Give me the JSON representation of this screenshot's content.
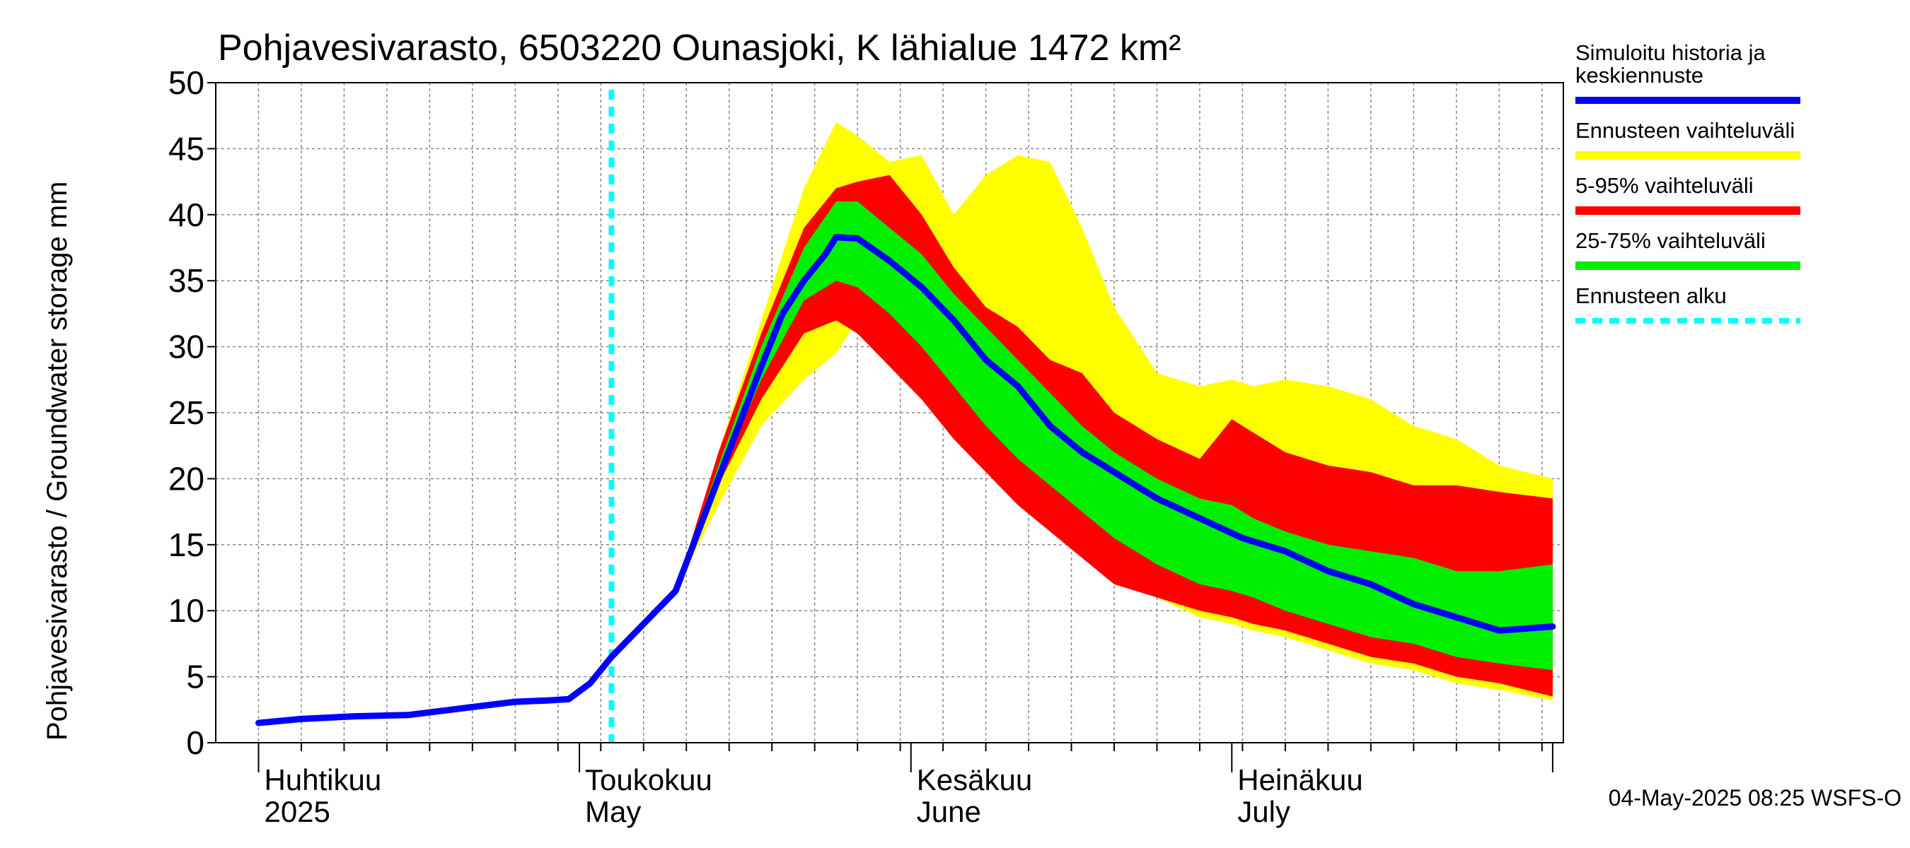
{
  "chart_data": {
    "type": "area",
    "title": "Pohjavesivarasto, 6503220 Ounasjoki, K lähialue 1472 km²",
    "ylabel": "Pohjavesivarasto / Groundwater storage   mm",
    "ylim": [
      0,
      50
    ],
    "yticks": [
      0,
      5,
      10,
      15,
      20,
      25,
      30,
      35,
      40,
      45,
      50
    ],
    "xlim": [
      "2025-04-01",
      "2025-07-31"
    ],
    "month_labels": [
      {
        "date": "2025-04-01",
        "line1": "Huhtikuu",
        "line2": "2025"
      },
      {
        "date": "2025-05-01",
        "line1": "Toukokuu",
        "line2": "May"
      },
      {
        "date": "2025-06-01",
        "line1": "Kesäkuu",
        "line2": "June"
      },
      {
        "date": "2025-07-01",
        "line1": "Heinäkuu",
        "line2": "July"
      }
    ],
    "forecast_start": "2025-05-04",
    "footer": "04-May-2025 08:25 WSFS-O",
    "legend": [
      {
        "label": "Simuloitu historia ja keskiennuste",
        "line1": "Simuloitu historia ja",
        "line2": "keskiennuste",
        "color": "#0000ff",
        "style": "solid"
      },
      {
        "label": "Ennusteen vaihteluväli",
        "color": "#ffff00",
        "style": "band"
      },
      {
        "label": "5-95% vaihteluväli",
        "color": "#ff0000",
        "style": "band"
      },
      {
        "label": "25-75% vaihteluväli",
        "color": "#00ee00",
        "style": "band"
      },
      {
        "label": "Ennusteen alku",
        "color": "#00ffff",
        "style": "dashed"
      }
    ],
    "history": {
      "x": [
        "2025-04-01",
        "2025-04-05",
        "2025-04-10",
        "2025-04-15",
        "2025-04-20",
        "2025-04-25",
        "2025-04-28",
        "2025-04-30",
        "2025-05-02",
        "2025-05-04"
      ],
      "y": [
        1.5,
        1.8,
        2.0,
        2.1,
        2.6,
        3.1,
        3.2,
        3.3,
        4.5,
        6.5
      ]
    },
    "median": {
      "x": [
        "2025-05-04",
        "2025-05-07",
        "2025-05-10",
        "2025-05-14",
        "2025-05-18",
        "2025-05-20",
        "2025-05-22",
        "2025-05-24",
        "2025-05-25",
        "2025-05-27",
        "2025-05-30",
        "2025-06-02",
        "2025-06-05",
        "2025-06-08",
        "2025-06-11",
        "2025-06-14",
        "2025-06-17",
        "2025-06-20",
        "2025-06-24",
        "2025-06-28",
        "2025-07-02",
        "2025-07-06",
        "2025-07-10",
        "2025-07-14",
        "2025-07-18",
        "2025-07-22",
        "2025-07-26",
        "2025-07-31"
      ],
      "y": [
        6.5,
        9.0,
        11.5,
        20.0,
        28.5,
        32.5,
        35.0,
        37.0,
        38.3,
        38.2,
        36.5,
        34.5,
        32.0,
        29.0,
        27.0,
        24.0,
        22.0,
        20.5,
        18.5,
        17.0,
        15.5,
        14.5,
        13.0,
        12.0,
        10.5,
        9.5,
        8.5,
        8.8
      ]
    },
    "band_x": [
      "2025-05-04",
      "2025-05-07",
      "2025-05-10",
      "2025-05-14",
      "2025-05-18",
      "2025-05-22",
      "2025-05-25",
      "2025-05-27",
      "2025-05-30",
      "2025-06-02",
      "2025-06-05",
      "2025-06-08",
      "2025-06-11",
      "2025-06-14",
      "2025-06-17",
      "2025-06-20",
      "2025-06-24",
      "2025-06-28",
      "2025-07-01",
      "2025-07-03",
      "2025-07-06",
      "2025-07-10",
      "2025-07-14",
      "2025-07-18",
      "2025-07-22",
      "2025-07-26",
      "2025-07-31"
    ],
    "bands": {
      "full": {
        "lower": [
          6.5,
          9.0,
          11.5,
          18.0,
          24.0,
          27.5,
          29.5,
          32.0,
          29.5,
          27.0,
          24.0,
          21.5,
          19.0,
          17.0,
          15.0,
          13.0,
          11.0,
          9.5,
          9.0,
          8.5,
          8.0,
          7.0,
          6.0,
          5.5,
          4.5,
          4.0,
          3.2
        ],
        "upper": [
          6.5,
          9.0,
          11.5,
          22.0,
          32.0,
          42.0,
          47.0,
          46.0,
          44.0,
          44.5,
          40.0,
          43.0,
          44.5,
          44.0,
          39.0,
          33.0,
          28.0,
          27.0,
          27.5,
          27.0,
          27.5,
          27.0,
          26.0,
          24.0,
          23.0,
          21.0,
          20.0
        ]
      },
      "p5_95": {
        "lower": [
          6.5,
          9.0,
          11.5,
          19.5,
          26.0,
          31.0,
          32.0,
          31.0,
          28.5,
          26.0,
          23.0,
          20.5,
          18.0,
          16.0,
          14.0,
          12.0,
          11.0,
          10.0,
          9.5,
          9.0,
          8.5,
          7.5,
          6.5,
          6.0,
          5.0,
          4.5,
          3.5
        ],
        "upper": [
          6.5,
          9.0,
          11.5,
          22.0,
          31.0,
          39.0,
          42.0,
          42.5,
          43.0,
          40.0,
          36.0,
          33.0,
          31.5,
          29.0,
          28.0,
          25.0,
          23.0,
          21.5,
          24.5,
          23.5,
          22.0,
          21.0,
          20.5,
          19.5,
          19.5,
          19.0,
          18.5
        ]
      },
      "p25_75": {
        "lower": [
          6.5,
          9.0,
          11.5,
          20.0,
          27.5,
          33.5,
          35.0,
          34.5,
          32.5,
          30.0,
          27.0,
          24.0,
          21.5,
          19.5,
          17.5,
          15.5,
          13.5,
          12.0,
          11.5,
          11.0,
          10.0,
          9.0,
          8.0,
          7.5,
          6.5,
          6.0,
          5.5
        ],
        "upper": [
          6.5,
          9.0,
          11.5,
          21.0,
          30.0,
          37.5,
          41.0,
          41.0,
          39.0,
          37.0,
          34.0,
          31.5,
          29.0,
          26.5,
          24.0,
          22.0,
          20.0,
          18.5,
          18.0,
          17.0,
          16.0,
          15.0,
          14.5,
          14.0,
          13.0,
          13.0,
          13.5
        ]
      }
    }
  }
}
